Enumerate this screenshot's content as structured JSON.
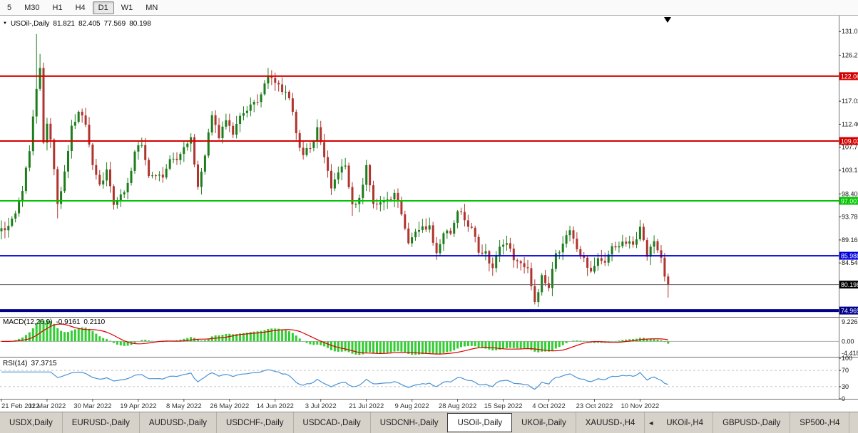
{
  "toolbar": {
    "timeframes": [
      {
        "label": "5",
        "active": false
      },
      {
        "label": "M30",
        "active": false
      },
      {
        "label": "H1",
        "active": false
      },
      {
        "label": "H4",
        "active": false
      },
      {
        "label": "D1",
        "active": true
      },
      {
        "label": "W1",
        "active": false
      },
      {
        "label": "MN",
        "active": false
      }
    ]
  },
  "symbol_info": {
    "marker": "▼",
    "symbol": "USOil-,Daily",
    "open": "81.821",
    "high": "82.405",
    "low": "77.569",
    "close": "80.198"
  },
  "indicators": {
    "macd": {
      "name": "MACD(12,26,9)",
      "value": "-0.9161",
      "signal_value": "0.2110",
      "axis_labels": [
        "9.2266",
        "0.00",
        "-4.4188"
      ]
    },
    "rsi": {
      "name": "RSI(14)",
      "value": "37.3715",
      "axis_labels": [
        "100",
        "70",
        "30",
        "0"
      ],
      "levels": [
        70,
        30
      ]
    }
  },
  "chart_data": {
    "type": "candlestick",
    "title": "USOil-,Daily",
    "price_axis_ticks": [
      "131.020",
      "126.260",
      "117.020",
      "112.400",
      "107.780",
      "103.160",
      "98.400",
      "93.780",
      "89.160",
      "84.540"
    ],
    "price_range": [
      73.7,
      134.2
    ],
    "dates": [
      "21 Feb 2022",
      "11 Mar 2022",
      "30 Mar 2022",
      "19 Apr 2022",
      "8 May 2022",
      "26 May 2022",
      "14 Jun 2022",
      "3 Jul 2022",
      "21 Jul 2022",
      "9 Aug 2022",
      "28 Aug 2022",
      "15 Sep 2022",
      "4 Oct 2022",
      "23 Oct 2022",
      "10 Nov 2022"
    ],
    "candles_per_label": 13,
    "candle_count": 191,
    "last_candle": {
      "open": 81.821,
      "high": 82.405,
      "low": 77.569,
      "close": 80.198
    },
    "close_anchors": [
      [
        0,
        91.5
      ],
      [
        2,
        92.0
      ],
      [
        4,
        94.5
      ],
      [
        6,
        99.0
      ],
      [
        8,
        107.0
      ],
      [
        10,
        119.5
      ],
      [
        11,
        123.7
      ],
      [
        12,
        108.7
      ],
      [
        13,
        112.5
      ],
      [
        14,
        109.3
      ],
      [
        16,
        96.4
      ],
      [
        18,
        102.9
      ],
      [
        20,
        112.1
      ],
      [
        22,
        114.9
      ],
      [
        24,
        112.3
      ],
      [
        26,
        104.2
      ],
      [
        28,
        100.3
      ],
      [
        30,
        103.3
      ],
      [
        32,
        96.2
      ],
      [
        34,
        98.3
      ],
      [
        36,
        100.6
      ],
      [
        38,
        106.9
      ],
      [
        40,
        108.2
      ],
      [
        42,
        102.0
      ],
      [
        44,
        102.1
      ],
      [
        46,
        101.7
      ],
      [
        48,
        105.4
      ],
      [
        50,
        105.2
      ],
      [
        52,
        107.8
      ],
      [
        54,
        109.8
      ],
      [
        56,
        99.8
      ],
      [
        58,
        106.1
      ],
      [
        60,
        114.2
      ],
      [
        62,
        109.6
      ],
      [
        64,
        113.2
      ],
      [
        66,
        110.3
      ],
      [
        68,
        114.1
      ],
      [
        70,
        115.1
      ],
      [
        72,
        116.9
      ],
      [
        74,
        118.4
      ],
      [
        76,
        122.1
      ],
      [
        78,
        120.7
      ],
      [
        80,
        118.9
      ],
      [
        82,
        117.6
      ],
      [
        84,
        110.6
      ],
      [
        86,
        106.2
      ],
      [
        88,
        107.6
      ],
      [
        90,
        111.8
      ],
      [
        92,
        105.8
      ],
      [
        94,
        99.5
      ],
      [
        96,
        102.7
      ],
      [
        98,
        104.1
      ],
      [
        100,
        96.3
      ],
      [
        102,
        97.6
      ],
      [
        104,
        104.2
      ],
      [
        106,
        96.4
      ],
      [
        108,
        96.7
      ],
      [
        110,
        97.3
      ],
      [
        112,
        98.6
      ],
      [
        114,
        94.3
      ],
      [
        116,
        88.5
      ],
      [
        118,
        90.8
      ],
      [
        120,
        91.9
      ],
      [
        122,
        92.1
      ],
      [
        124,
        86.5
      ],
      [
        126,
        90.5
      ],
      [
        128,
        90.4
      ],
      [
        130,
        94.9
      ],
      [
        132,
        93.1
      ],
      [
        134,
        91.6
      ],
      [
        136,
        86.6
      ],
      [
        138,
        86.9
      ],
      [
        140,
        83.5
      ],
      [
        142,
        87.8
      ],
      [
        144,
        88.5
      ],
      [
        146,
        85.1
      ],
      [
        148,
        84.5
      ],
      [
        150,
        83.5
      ],
      [
        152,
        76.7
      ],
      [
        154,
        82.1
      ],
      [
        156,
        79.5
      ],
      [
        158,
        86.5
      ],
      [
        160,
        88.4
      ],
      [
        162,
        91.1
      ],
      [
        164,
        87.3
      ],
      [
        166,
        85.6
      ],
      [
        168,
        82.8
      ],
      [
        170,
        85.5
      ],
      [
        172,
        84.6
      ],
      [
        174,
        87.9
      ],
      [
        176,
        87.9
      ],
      [
        178,
        88.4
      ],
      [
        180,
        88.2
      ],
      [
        182,
        91.8
      ],
      [
        184,
        85.8
      ],
      [
        186,
        88.9
      ],
      [
        188,
        85.6
      ],
      [
        189,
        81.8
      ],
      [
        190,
        80.198
      ]
    ],
    "wick_overrides": [
      {
        "i": 10,
        "high": 130.5
      },
      {
        "i": 11,
        "high": 126.5
      },
      {
        "i": 16,
        "low": 93.5
      },
      {
        "i": 76,
        "high": 123.7
      },
      {
        "i": 100,
        "low": 94.0
      },
      {
        "i": 152,
        "low": 76.2
      }
    ],
    "levels": [
      {
        "price": 122.06,
        "label": "122.06",
        "color": "#d40000",
        "width": 2
      },
      {
        "price": 109.03,
        "label": "109.03",
        "color": "#d40000",
        "width": 2
      },
      {
        "price": 97.007,
        "label": "97.007",
        "color": "#00c400",
        "width": 2
      },
      {
        "price": 85.988,
        "label": "85.988",
        "color": "#0000d8",
        "width": 2
      },
      {
        "price": 74.969,
        "label": "74.969",
        "color": "#00008b",
        "width": 4
      }
    ],
    "bid": {
      "price": 80.198,
      "label": "80.198",
      "bg": "#000000"
    },
    "colors": {
      "up": "#1d7d1d",
      "down": "#b0342e",
      "macd_hist": "#33cc33",
      "macd_signal": "#dd0000",
      "rsi_line": "#4a93d6"
    }
  },
  "tabs": {
    "items": [
      {
        "label": "USDX,Daily"
      },
      {
        "label": "EURUSD-,Daily"
      },
      {
        "label": "AUDUSD-,Daily"
      },
      {
        "label": "USDCHF-,Daily"
      },
      {
        "label": "USDCAD-,Daily"
      },
      {
        "label": "USDCNH-,Daily"
      },
      {
        "label": "USOil-,Daily",
        "active": true
      },
      {
        "label": "UKOil-,Daily"
      },
      {
        "label": "XAUUSD-,H4"
      },
      {
        "label": "UKOil-,H4"
      },
      {
        "label": "GBPUSD-,Daily"
      },
      {
        "label": "SP500-,H4"
      }
    ],
    "scroll_left_glyph": "◄",
    "arrow_after_index": 8
  }
}
